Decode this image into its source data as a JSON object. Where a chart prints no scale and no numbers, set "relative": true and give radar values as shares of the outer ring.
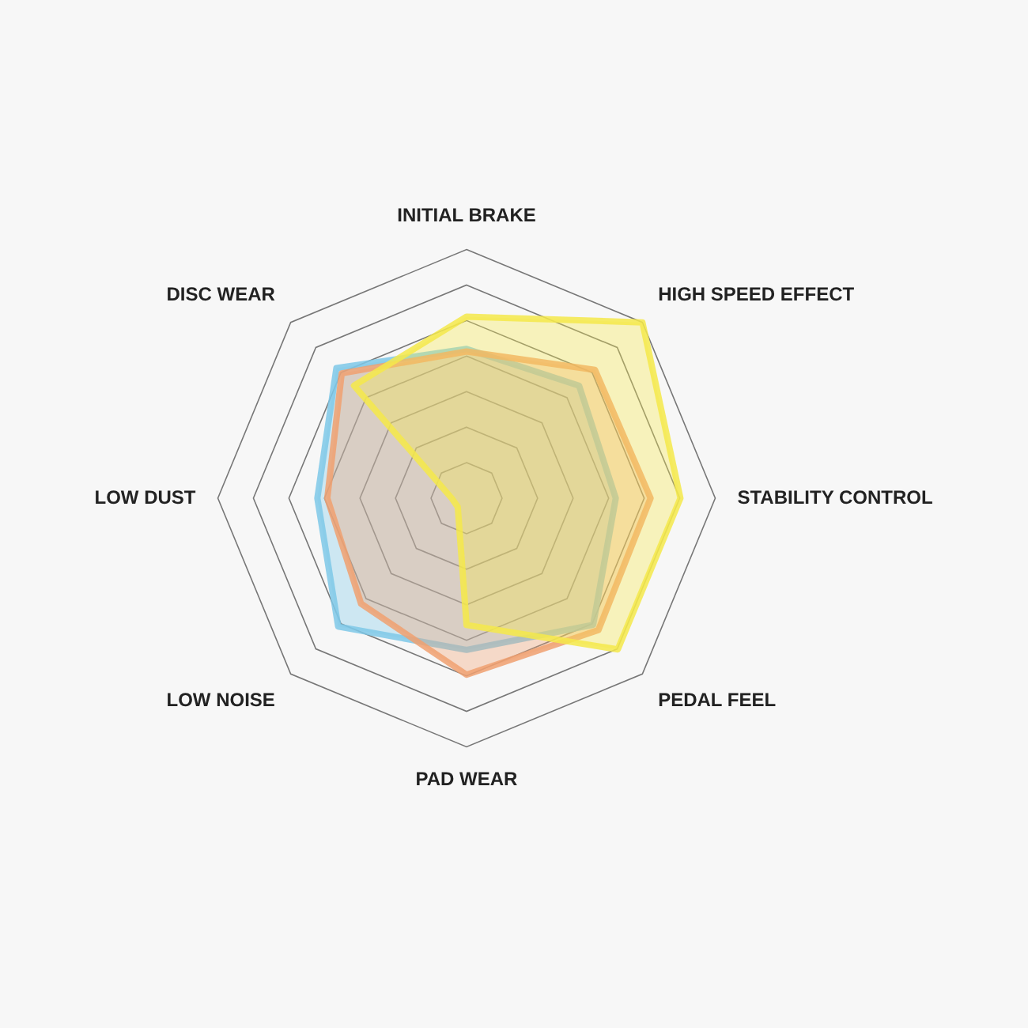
{
  "chart_data": {
    "type": "radar",
    "relative": true,
    "grid": true,
    "categories": [
      "INITIAL BRAKE",
      "HIGH SPEED EFFECT",
      "STABILITY CONTROL",
      "PEDAL FEEL",
      "PAD WEAR",
      "LOW NOISE",
      "LOW DUST",
      "DISC WEAR"
    ],
    "series": [
      {
        "color": "#f5e94a",
        "values": [
          0.73,
          1.0,
          0.86,
          0.86,
          0.51,
          0.05,
          0.06,
          0.64
        ]
      },
      {
        "color": "#f0a070",
        "values": [
          0.59,
          0.73,
          0.74,
          0.75,
          0.71,
          0.6,
          0.56,
          0.71
        ]
      },
      {
        "color": "#7ec8e8",
        "values": [
          0.6,
          0.64,
          0.6,
          0.72,
          0.61,
          0.73,
          0.6,
          0.74
        ]
      }
    ]
  }
}
